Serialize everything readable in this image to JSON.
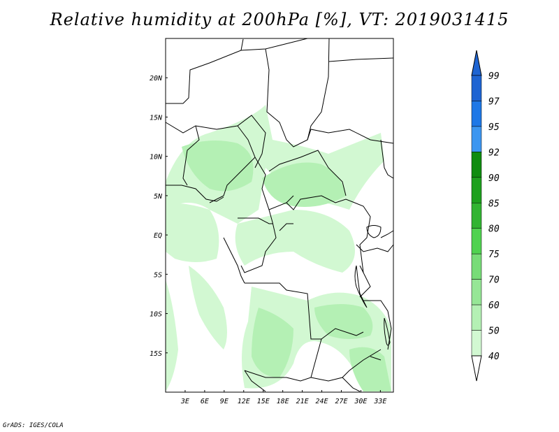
{
  "title": "Relative humidity at 200hPa [%], VT: 2019031415",
  "footer": "GrADS: IGES/COLA",
  "map": {
    "lon_range": [
      0,
      35
    ],
    "lat_range": [
      -20,
      25
    ],
    "lon_ticks": [
      "3E",
      "6E",
      "9E",
      "12E",
      "15E",
      "18E",
      "21E",
      "24E",
      "27E",
      "30E",
      "33E"
    ],
    "lat_ticks": [
      "20N",
      "15N",
      "10N",
      "5N",
      "EQ",
      "5S",
      "10S",
      "15S"
    ]
  },
  "colorbar": {
    "levels": [
      "99",
      "97",
      "95",
      "92",
      "90",
      "85",
      "80",
      "75",
      "70",
      "60",
      "50",
      "40"
    ],
    "colors": [
      "#1e64d2",
      "#1e78e6",
      "#3c96f0",
      "#0f8c0f",
      "#1ea01e",
      "#32b432",
      "#50d250",
      "#78dc78",
      "#96e696",
      "#b4f0b4",
      "#d2f8d2",
      "#f0fff0"
    ]
  }
}
